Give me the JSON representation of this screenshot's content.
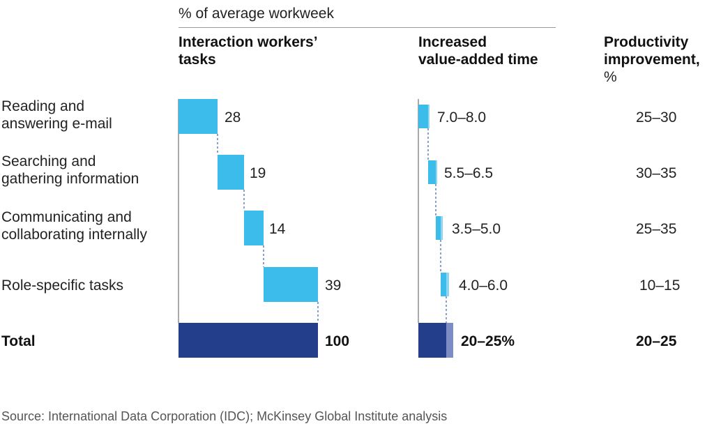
{
  "header": {
    "subtitle": "% of average workweek",
    "col1_line1": "Interaction workers’",
    "col1_line2": "tasks",
    "col2_line1": "Increased",
    "col2_line2": "value-added time",
    "col3_line1": "Productivity",
    "col3_line2": "improvement,",
    "col3_line3": "%"
  },
  "rows": [
    {
      "label_line1": "Reading and",
      "label_line2": "answering e-mail",
      "share_label": "28",
      "time_label": "7.0–8.0",
      "improvement": "25–30"
    },
    {
      "label_line1": "Searching and",
      "label_line2": "gathering information",
      "share_label": "19",
      "time_label": "5.5–6.5",
      "improvement": "30–35"
    },
    {
      "label_line1": "Communicating and",
      "label_line2": "collaborating internally",
      "share_label": "14",
      "time_label": "3.5–5.0",
      "improvement": "25–35"
    },
    {
      "label_line1": "Role-specific tasks",
      "label_line2": "",
      "share_label": "39",
      "time_label": "4.0–6.0",
      "improvement": "10–15"
    }
  ],
  "total": {
    "label": "Total",
    "share_label": "100",
    "time_label": "20–25%",
    "improvement": "20–25"
  },
  "source": "Source: International Data Corporation (IDC); McKinsey Global Institute analysis",
  "chart_data": {
    "type": "bar",
    "subtitle": "% of average workweek",
    "categories": [
      "Reading and answering e-mail",
      "Searching and gathering information",
      "Communicating and collaborating internally",
      "Role-specific tasks",
      "Total"
    ],
    "series": [
      {
        "name": "Interaction workers’ tasks",
        "values": [
          28,
          19,
          14,
          39,
          100
        ]
      },
      {
        "name": "Increased value-added time",
        "values": [
          [
            7.0,
            8.0
          ],
          [
            5.5,
            6.5
          ],
          [
            3.5,
            5.0
          ],
          [
            4.0,
            6.0
          ],
          [
            20,
            25
          ]
        ]
      },
      {
        "name": "Productivity improvement, %",
        "values": [
          [
            25,
            30
          ],
          [
            30,
            35
          ],
          [
            25,
            35
          ],
          [
            10,
            15
          ],
          [
            20,
            25
          ]
        ]
      }
    ],
    "colors": {
      "light": "#3BBCEB",
      "light_range": "#8FD5F3",
      "dark": "#233E8B",
      "dark_range": "#7C8CC4",
      "connector": "#4A6EB0"
    }
  }
}
